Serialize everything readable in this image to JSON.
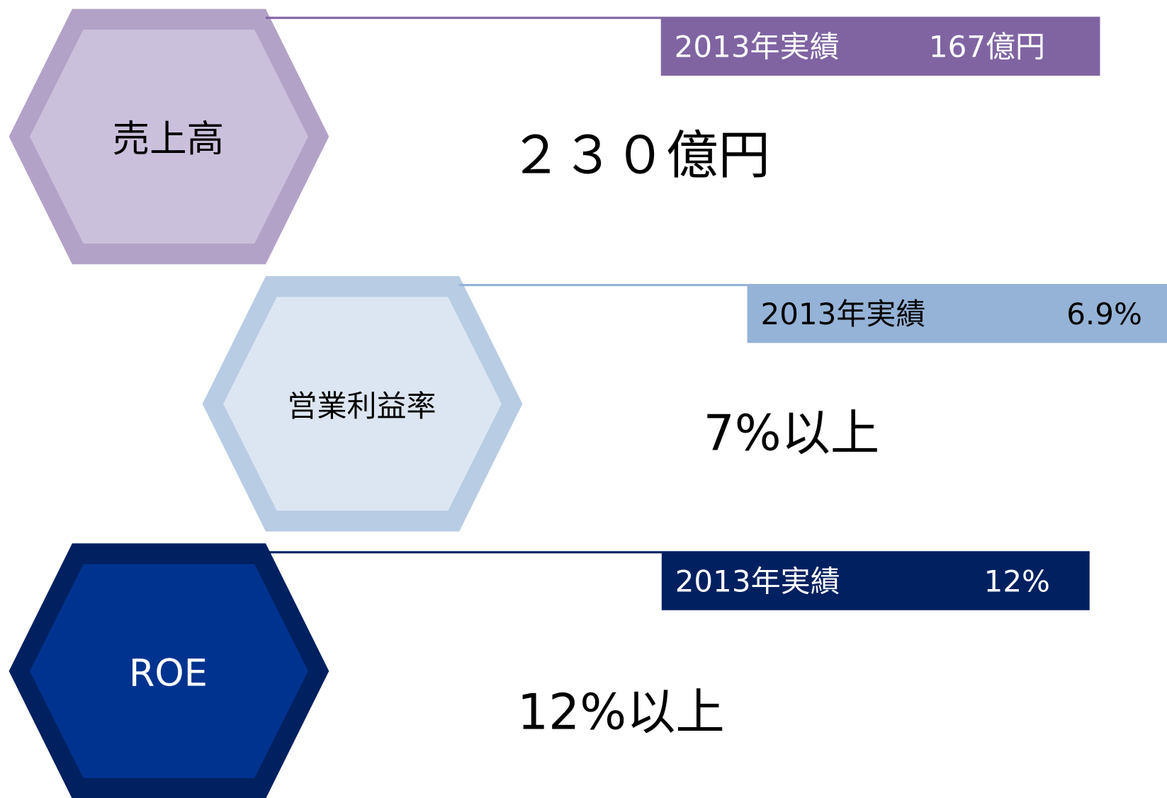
{
  "items": [
    {
      "label": "売上高",
      "target": "２３０億円",
      "actual_label": "2013年実績",
      "actual_value": "167億円"
    },
    {
      "label": "営業利益率",
      "target": "7%以上",
      "actual_label": "2013年実績",
      "actual_value": "6.9%"
    },
    {
      "label": "ROE",
      "target": "12%以上",
      "actual_label": "2013年実績",
      "actual_value": "12%"
    }
  ]
}
